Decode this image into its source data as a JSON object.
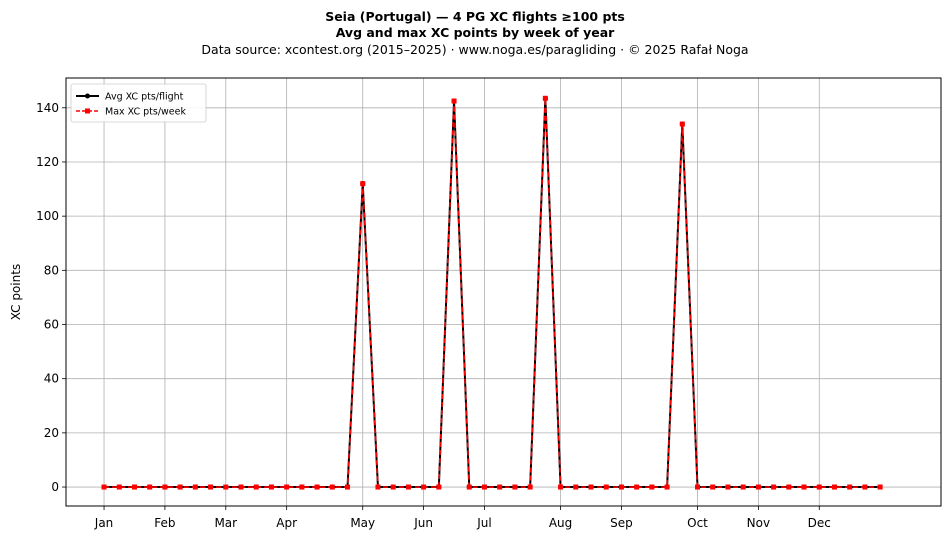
{
  "header": {
    "title": "Seia (Portugal)  —  4 PG XC flights ≥100 pts",
    "subtitle": "Avg and max XC points by week of year",
    "source": "Data source: xcontest.org (2015–2025)  ·  www.noga.es/paragliding  ·  © 2025 Rafał Noga"
  },
  "chart_data": {
    "type": "line",
    "title": "Seia (Portugal)  —  4 PG XC flights ≥100 pts",
    "subtitle": "Avg and max XC points by week of year",
    "xlabel": "",
    "ylabel": "XC points",
    "x": [
      1,
      2,
      3,
      4,
      5,
      6,
      7,
      8,
      9,
      10,
      11,
      12,
      13,
      14,
      15,
      16,
      17,
      18,
      19,
      20,
      21,
      22,
      23,
      24,
      25,
      26,
      27,
      28,
      29,
      30,
      31,
      32,
      33,
      34,
      35,
      36,
      37,
      38,
      39,
      40,
      41,
      42,
      43,
      44,
      45,
      46,
      47,
      48,
      49,
      50,
      51,
      52
    ],
    "xlim": [
      -1.5,
      56
    ],
    "ylim": [
      -7,
      151
    ],
    "yticks": [
      0,
      20,
      40,
      60,
      80,
      100,
      120,
      140
    ],
    "xticks": [
      {
        "pos": 1,
        "label": "Jan"
      },
      {
        "pos": 5,
        "label": "Feb"
      },
      {
        "pos": 9,
        "label": "Mar"
      },
      {
        "pos": 13,
        "label": "Apr"
      },
      {
        "pos": 18,
        "label": "May"
      },
      {
        "pos": 22,
        "label": "Jun"
      },
      {
        "pos": 26,
        "label": "Jul"
      },
      {
        "pos": 31,
        "label": "Aug"
      },
      {
        "pos": 35,
        "label": "Sep"
      },
      {
        "pos": 40,
        "label": "Oct"
      },
      {
        "pos": 44,
        "label": "Nov"
      },
      {
        "pos": 48,
        "label": "Dec"
      }
    ],
    "grid": true,
    "legend_position": "top-left",
    "series": [
      {
        "name": "Avg XC pts/flight",
        "color": "#000000",
        "marker": "circle",
        "linestyle": "solid",
        "values": [
          0,
          0,
          0,
          0,
          0,
          0,
          0,
          0,
          0,
          0,
          0,
          0,
          0,
          0,
          0,
          0,
          0,
          112,
          0,
          0,
          0,
          0,
          0,
          142.5,
          0,
          0,
          0,
          0,
          0,
          143.5,
          0,
          0,
          0,
          0,
          0,
          0,
          0,
          0,
          134,
          0,
          0,
          0,
          0,
          0,
          0,
          0,
          0,
          0,
          0,
          0,
          0,
          0
        ]
      },
      {
        "name": "Max XC pts/week",
        "color": "#ff0000",
        "marker": "square",
        "linestyle": "dashed",
        "values": [
          0,
          0,
          0,
          0,
          0,
          0,
          0,
          0,
          0,
          0,
          0,
          0,
          0,
          0,
          0,
          0,
          0,
          112,
          0,
          0,
          0,
          0,
          0,
          142.5,
          0,
          0,
          0,
          0,
          0,
          143.5,
          0,
          0,
          0,
          0,
          0,
          0,
          0,
          0,
          134,
          0,
          0,
          0,
          0,
          0,
          0,
          0,
          0,
          0,
          0,
          0,
          0,
          0
        ]
      }
    ]
  }
}
